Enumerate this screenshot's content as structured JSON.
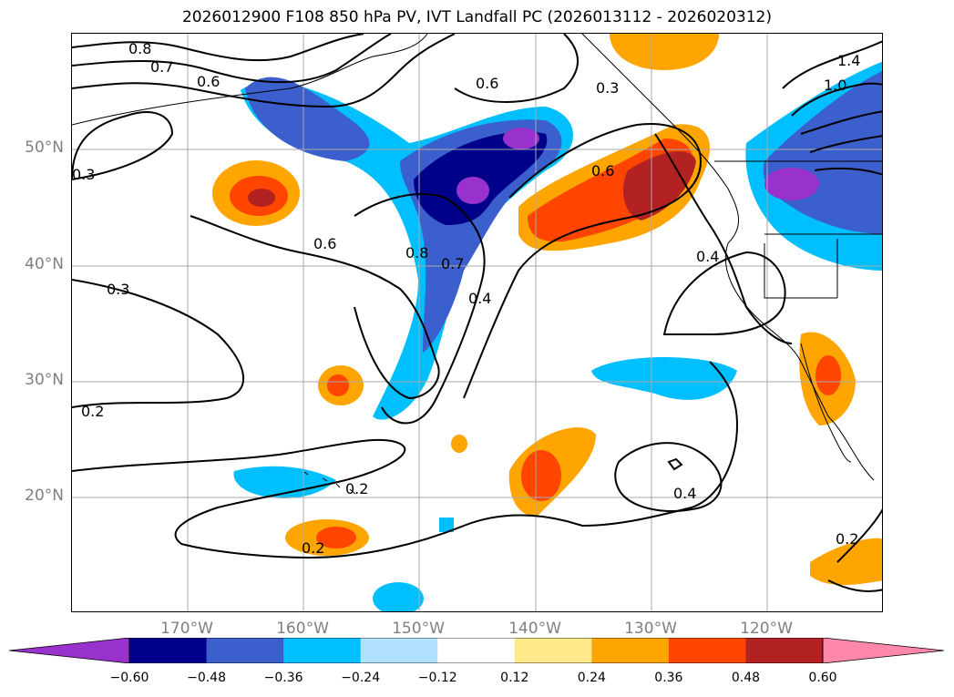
{
  "title": "2026012900 F108 850 hPa PV, IVT Landfall PC (2026013112 - 2026020312)",
  "lat_ticks": [
    "50°N",
    "40°N",
    "30°N",
    "20°N"
  ],
  "lon_ticks": [
    "170°W",
    "160°W",
    "150°W",
    "140°W",
    "130°W",
    "120°W"
  ],
  "contour_labels": [
    "0.8",
    "0.7",
    "0.6",
    "0.6",
    "0.3",
    "0.6",
    "0.6",
    "0.8",
    "0.7",
    "0.4",
    "0.3",
    "0.2",
    "0.2",
    "0.4",
    "0.2",
    "0.2",
    "0.4",
    "0.3",
    "1.4",
    "1.0"
  ],
  "colorbar": {
    "labels": [
      "−0.60",
      "−0.48",
      "−0.36",
      "−0.24",
      "−0.12",
      "0.12",
      "0.24",
      "0.36",
      "0.48",
      "0.60"
    ],
    "colors": [
      "#9932CC",
      "#00008B",
      "#3B5FCD",
      "#00BFFF",
      "#B0E2FF",
      "#FFFFFF",
      "#FFE98A",
      "#FFA500",
      "#FF4500",
      "#B22222",
      "#FF88AA"
    ]
  }
}
